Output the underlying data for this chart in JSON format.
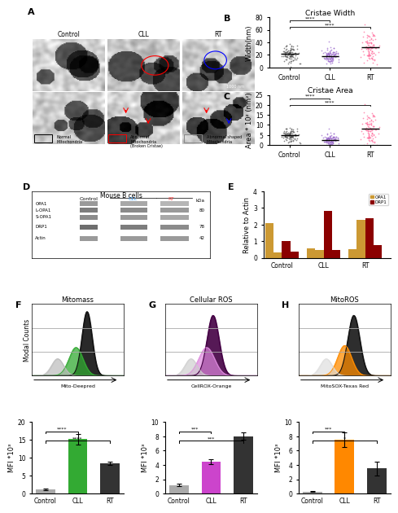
{
  "panel_B": {
    "title": "Cristae Width",
    "ylabel": "Width(nm)",
    "ylim": [
      0,
      80
    ],
    "yticks": [
      0,
      20,
      40,
      60,
      80
    ],
    "groups": [
      "Control",
      "CLL",
      "RT"
    ],
    "colors": [
      "#555555",
      "#9966CC",
      "#FF6699"
    ],
    "means": [
      22,
      18,
      32
    ],
    "stds": [
      8,
      6,
      12
    ],
    "significance": [
      [
        "Control",
        "CLL",
        "****"
      ],
      [
        "Control",
        "RT",
        "****"
      ]
    ]
  },
  "panel_C": {
    "title": "Cristae Area",
    "ylabel": "Area * 10² (nm²)",
    "ylim": [
      0,
      25
    ],
    "yticks": [
      0,
      5,
      10,
      15,
      20,
      25
    ],
    "groups": [
      "Control",
      "CLL",
      "RT"
    ],
    "colors": [
      "#555555",
      "#9966CC",
      "#FF6699"
    ],
    "means": [
      5,
      2.5,
      8
    ],
    "stds": [
      2,
      1.5,
      4
    ],
    "significance": [
      [
        "Control",
        "CLL",
        "****"
      ],
      [
        "Control",
        "RT",
        "****"
      ]
    ]
  },
  "panel_E": {
    "ylabel": "Relative to Actin",
    "ylim": [
      0,
      4.0
    ],
    "yticks": [
      0,
      1.0,
      2.0,
      3.0,
      4.0
    ],
    "groups": [
      "Control",
      "CLL",
      "RT"
    ],
    "opa1_values": [
      2.1,
      0.3,
      0.55,
      0.45,
      0.5,
      2.3
    ],
    "drp1_values": [
      1.0,
      0.35,
      2.8,
      0.45,
      2.4,
      0.75
    ],
    "opa1_color": "#CC9933",
    "drp1_color": "#8B0000"
  },
  "panel_F": {
    "title": "Mitomass",
    "xlabel": "→ Mito-Deepred",
    "ylabel": "Modal Counts",
    "bar_values": [
      1.2,
      15.2,
      8.5
    ],
    "bar_colors": [
      "#AAAAAA",
      "#33AA33",
      "#333333"
    ],
    "bar_errors": [
      0.15,
      1.5,
      0.4
    ],
    "groups": [
      "Control",
      "CLL",
      "RT"
    ],
    "mfi_ylabel": "MFI *10³",
    "mfi_ylim": [
      0,
      20
    ],
    "mfi_yticks": [
      0,
      5,
      10,
      15,
      20
    ],
    "significance": [
      [
        "Control",
        "CLL",
        "****"
      ],
      [
        "Control",
        "RT",
        "****"
      ]
    ]
  },
  "panel_G": {
    "title": "Cellular ROS",
    "xlabel": "→ CellROX-Orange",
    "ylabel": "Modal Counts",
    "bar_values": [
      1.2,
      4.5,
      8.0
    ],
    "bar_colors": [
      "#AAAAAA",
      "#CC44CC",
      "#333333"
    ],
    "bar_errors": [
      0.15,
      0.35,
      0.5
    ],
    "groups": [
      "Control",
      "CLL",
      "RT"
    ],
    "mfi_ylabel": "MFI *10³",
    "mfi_ylim": [
      0,
      10
    ],
    "mfi_yticks": [
      0,
      2,
      4,
      6,
      8,
      10
    ],
    "significance": [
      [
        "Control",
        "CLL",
        "***"
      ],
      [
        "Control",
        "RT",
        "***"
      ]
    ]
  },
  "panel_H": {
    "title": "MitoROS",
    "xlabel": "→ MitoSOX-Texas Red",
    "ylabel": "Modal Counts",
    "bar_values": [
      0.3,
      7.5,
      3.5
    ],
    "bar_colors": [
      "#AAAAAA",
      "#FF8800",
      "#333333"
    ],
    "bar_errors": [
      0.05,
      1.0,
      1.0
    ],
    "groups": [
      "Control",
      "CLL",
      "RT"
    ],
    "mfi_ylabel": "MFI *10³",
    "mfi_ylim": [
      0,
      10
    ],
    "mfi_yticks": [
      0,
      2,
      4,
      6,
      8,
      10
    ],
    "significance": [
      [
        "Control",
        "CLL",
        "***"
      ],
      [
        "Control",
        "RT",
        "*"
      ]
    ]
  },
  "bg_color": "#FFFFFF",
  "panel_label_fontsize": 8,
  "axis_fontsize": 6,
  "tick_fontsize": 5.5
}
